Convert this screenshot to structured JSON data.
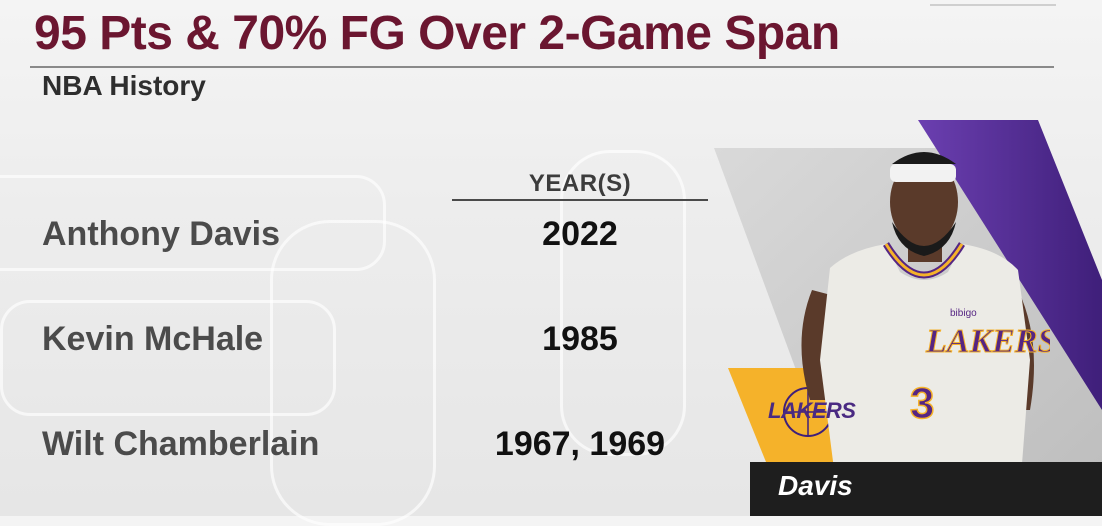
{
  "title": "95 Pts & 70% FG Over 2-Game Span",
  "subtitle": "NBA History",
  "column_header": "YEAR(S)",
  "rows": [
    {
      "player": "Anthony Davis",
      "years": "2022"
    },
    {
      "player": "Kevin McHale",
      "years": "1985"
    },
    {
      "player": "Wilt Chamberlain",
      "years": "1967, 1969"
    }
  ],
  "player_card": {
    "name": "Davis",
    "team_logo_text": "LAKERS",
    "jersey_number": "3",
    "jersey_text": "LAKERS",
    "sponsor_patch": "bibigo"
  },
  "colors": {
    "title": "#6b1630",
    "lakers_purple": "#552583",
    "lakers_gold": "#f5b22a"
  }
}
